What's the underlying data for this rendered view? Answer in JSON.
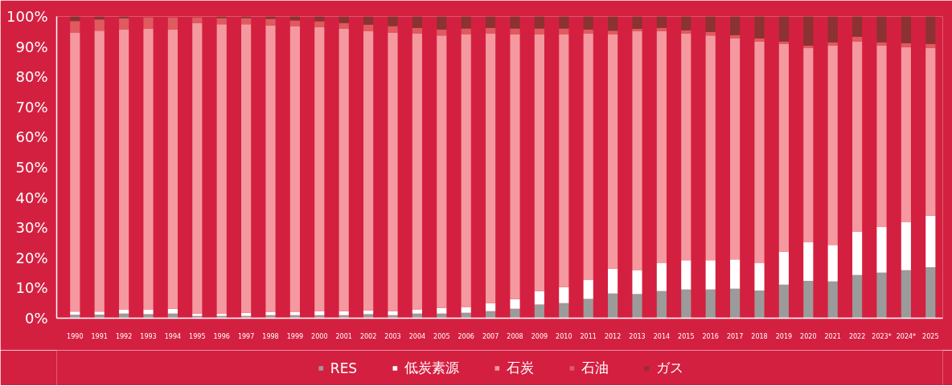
{
  "chart_data": {
    "type": "bar",
    "stacked": true,
    "categories": [
      "1990",
      "1991",
      "1992",
      "1993",
      "1994",
      "1995",
      "1996",
      "1997",
      "1998",
      "1999",
      "2000",
      "2001",
      "2002",
      "2003",
      "2004",
      "2005",
      "2006",
      "2007",
      "2008",
      "2009",
      "2010",
      "2011",
      "2012",
      "2013",
      "2014",
      "2015",
      "2016",
      "2017",
      "2018",
      "2019",
      "2020",
      "2021",
      "2022",
      "2023*",
      "2024*",
      "2025"
    ],
    "series": [
      {
        "name": "RES",
        "color": "#9b9b9b",
        "values": [
          1.1,
          1.2,
          1.5,
          1.3,
          1.5,
          0.7,
          0.7,
          0.7,
          1.0,
          1.0,
          1.0,
          1.0,
          1.3,
          1.0,
          1.5,
          1.5,
          1.8,
          2.3,
          3.1,
          4.5,
          5.0,
          6.4,
          8.2,
          8.0,
          9.0,
          9.5,
          9.5,
          9.8,
          9.2,
          11.1,
          12.4,
          12.2,
          14.3,
          15.1,
          15.9,
          16.9
        ]
      },
      {
        "name": "低炭素源",
        "color": "#ffffff",
        "values": [
          1.1,
          1.0,
          1.4,
          1.6,
          1.6,
          0.8,
          0.8,
          1.1,
          1.1,
          1.1,
          1.3,
          1.3,
          1.3,
          1.3,
          1.4,
          1.9,
          1.9,
          2.7,
          3.2,
          4.5,
          5.3,
          6.2,
          8.2,
          7.8,
          9.2,
          9.7,
          9.7,
          9.7,
          9.0,
          11.0,
          12.7,
          12.1,
          14.3,
          15.1,
          15.9,
          17.1
        ]
      },
      {
        "name": "石炭",
        "color": "#f4999f",
        "values": [
          92.5,
          93.1,
          92.7,
          93.0,
          92.5,
          96.3,
          95.9,
          95.6,
          94.9,
          94.6,
          94.1,
          93.6,
          92.5,
          92.4,
          91.4,
          90.3,
          90.3,
          89.3,
          87.7,
          85.0,
          83.7,
          81.7,
          77.6,
          79.3,
          76.9,
          75.1,
          74.5,
          73.2,
          73.4,
          68.7,
          64.4,
          66.0,
          63.0,
          60.1,
          58.0,
          55.5
        ]
      },
      {
        "name": "石油",
        "color": "#e05a60",
        "values": [
          3.8,
          3.7,
          3.8,
          3.8,
          4.1,
          1.9,
          2.1,
          2.1,
          2.2,
          2.0,
          2.0,
          1.9,
          2.2,
          2.1,
          1.9,
          2.0,
          2.0,
          1.9,
          2.0,
          2.0,
          2.0,
          1.4,
          1.3,
          0.8,
          1.1,
          1.1,
          1.1,
          1.1,
          1.1,
          0.9,
          0.8,
          1.1,
          1.7,
          1.1,
          1.3,
          1.4
        ]
      },
      {
        "name": "ガス",
        "color": "#8b3232",
        "values": [
          1.5,
          1.0,
          0.6,
          null,
          null,
          null,
          0.5,
          0.5,
          0.8,
          1.3,
          1.6,
          2.2,
          2.7,
          3.2,
          3.8,
          4.3,
          4.0,
          3.8,
          4.0,
          4.0,
          4.0,
          4.3,
          4.7,
          4.1,
          3.8,
          4.6,
          5.2,
          6.2,
          7.3,
          8.3,
          9.7,
          8.6,
          6.7,
          8.6,
          8.9,
          9.1
        ]
      }
    ],
    "ylim": [
      0,
      100
    ],
    "yticks": [
      {
        "value": 0,
        "label": "0%"
      },
      {
        "value": 10,
        "label": "10%"
      },
      {
        "value": 20,
        "label": "20%"
      },
      {
        "value": 30,
        "label": "30%"
      },
      {
        "value": 40,
        "label": "40%"
      },
      {
        "value": 50,
        "label": "50%"
      },
      {
        "value": 60,
        "label": "60%"
      },
      {
        "value": 70,
        "label": "70%"
      },
      {
        "value": 80,
        "label": "80%"
      },
      {
        "value": 90,
        "label": "90%"
      },
      {
        "value": 100,
        "label": "100%"
      }
    ],
    "grid": false,
    "legend": "bottom"
  }
}
